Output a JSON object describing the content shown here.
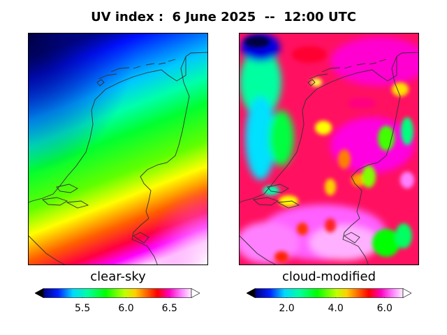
{
  "title": "UV index :  6 June 2025  --  12:00 UTC",
  "panels": [
    {
      "label": "clear-sky",
      "ticks": [
        {
          "value": 5.5,
          "text": "5.5"
        },
        {
          "value": 6.0,
          "text": "6.0"
        },
        {
          "value": 6.5,
          "text": "6.5"
        }
      ],
      "range": [
        5.05,
        6.75
      ]
    },
    {
      "label": "cloud-modified",
      "ticks": [
        {
          "value": 2.0,
          "text": "2.0"
        },
        {
          "value": 4.0,
          "text": "4.0"
        },
        {
          "value": 6.0,
          "text": "6.0"
        }
      ],
      "range": [
        0.7,
        6.75
      ]
    }
  ],
  "colormap": "gist_ncar",
  "colors": {
    "low": "#000080",
    "mid": "#00ff00",
    "high": "#ff00ff",
    "max": "#ffffff",
    "coastline": "#333333"
  }
}
